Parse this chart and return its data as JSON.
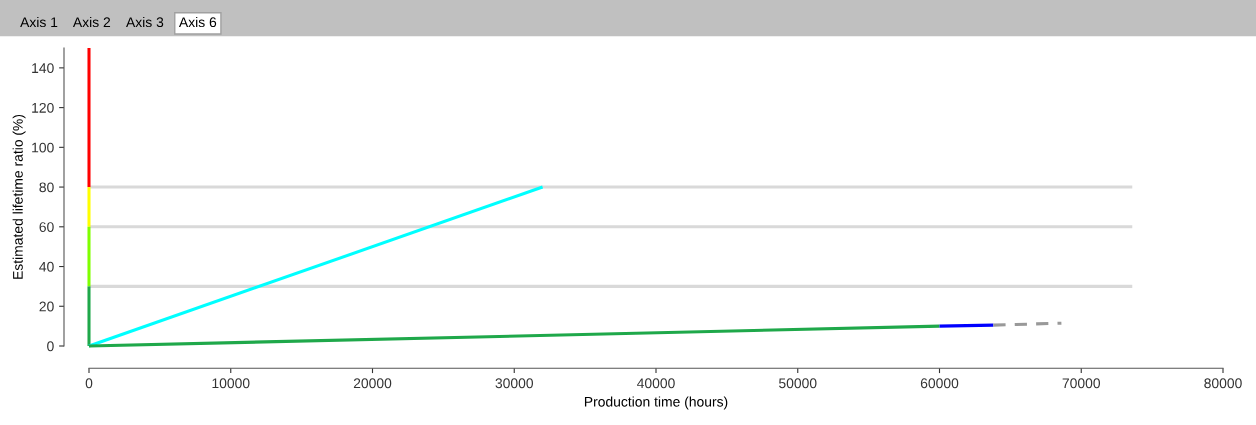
{
  "chart_data": {
    "type": "line",
    "annotations": [
      "Axis 1",
      "Axis 2",
      "Axis 3",
      "Axis 6"
    ],
    "xlabel": "Production time (hours)",
    "ylabel": "Estimated lifetime ratio (%)",
    "xlim": [
      0,
      80000
    ],
    "xticks": [
      0,
      10000,
      20000,
      30000,
      40000,
      50000,
      60000,
      70000,
      80000
    ],
    "ylim": [
      0,
      150
    ],
    "yticks": [
      0,
      20,
      40,
      60,
      80,
      100,
      120,
      140
    ],
    "grid": false,
    "legend": false,
    "marker": "none",
    "series": [
      {
        "color": "#d9d9d9",
        "x": [
          0,
          73600
        ],
        "values": [
          30,
          30
        ]
      },
      {
        "color": "#d9d9d9",
        "x": [
          0,
          73600
        ],
        "values": [
          60,
          60
        ]
      },
      {
        "color": "#d9d9d9",
        "x": [
          0,
          73600
        ],
        "values": [
          80,
          80
        ]
      },
      {
        "color": "#ff0000",
        "x": [
          0,
          0
        ],
        "values": [
          80,
          150
        ]
      },
      {
        "color": "#ffff00",
        "x": [
          0,
          0
        ],
        "values": [
          60,
          80
        ]
      },
      {
        "color": "#80ff00",
        "x": [
          0,
          0
        ],
        "values": [
          30,
          60
        ]
      },
      {
        "color": "#1fa84a",
        "x": [
          0,
          0
        ],
        "values": [
          0,
          30
        ]
      },
      {
        "color": "#00ffff",
        "x": [
          0,
          32000
        ],
        "values": [
          0,
          80
        ]
      },
      {
        "color": "#1fa84a",
        "x": [
          0,
          60000
        ],
        "values": [
          0,
          10
        ]
      },
      {
        "color": "#0000ff",
        "x": [
          60000,
          63800
        ],
        "values": [
          10,
          10.5
        ]
      },
      {
        "color": "#999999",
        "x": [
          63800,
          68600
        ],
        "values": [
          10.5,
          11.5
        ],
        "line_style": "dashed"
      }
    ]
  }
}
